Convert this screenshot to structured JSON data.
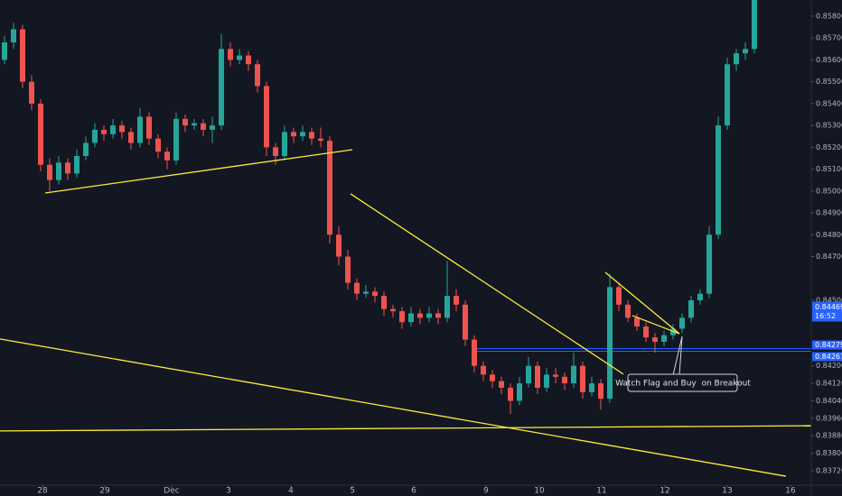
{
  "chart_data": {
    "type": "candlestick",
    "xlim": [
      -0.5,
      89.3
    ],
    "ylim": [
      0.83654,
      0.85874
    ],
    "xticks": [
      {
        "value": 4.2,
        "label": "28"
      },
      {
        "value": 11.1,
        "label": "29"
      },
      {
        "value": 18.5,
        "label": "Dec"
      },
      {
        "value": 24.8,
        "label": "3"
      },
      {
        "value": 31.7,
        "label": "4"
      },
      {
        "value": 38.5,
        "label": "5"
      },
      {
        "value": 45.3,
        "label": "6"
      },
      {
        "value": 53.3,
        "label": "9"
      },
      {
        "value": 59.2,
        "label": "10"
      },
      {
        "value": 66.1,
        "label": "11"
      },
      {
        "value": 73.1,
        "label": "12"
      },
      {
        "value": 80,
        "label": "13"
      },
      {
        "value": 87,
        "label": "16"
      }
    ],
    "yticks": [
      {
        "value": 0.858,
        "label": "0.85800"
      },
      {
        "value": 0.857,
        "label": "0.85700"
      },
      {
        "value": 0.856,
        "label": "0.85600"
      },
      {
        "value": 0.855,
        "label": "0.85500"
      },
      {
        "value": 0.854,
        "label": "0.85400"
      },
      {
        "value": 0.853,
        "label": "0.85300"
      },
      {
        "value": 0.852,
        "label": "0.85200"
      },
      {
        "value": 0.851,
        "label": "0.85100"
      },
      {
        "value": 0.85,
        "label": "0.85000"
      },
      {
        "value": 0.849,
        "label": "0.84900"
      },
      {
        "value": 0.848,
        "label": "0.84800"
      },
      {
        "value": 0.847,
        "label": "0.84700"
      },
      {
        "value": 0.845,
        "label": "0.84500"
      },
      {
        "value": 0.842,
        "label": "0.84200"
      },
      {
        "value": 0.8412,
        "label": "0.84120"
      },
      {
        "value": 0.8404,
        "label": "0.84040"
      },
      {
        "value": 0.8396,
        "label": "0.83960"
      },
      {
        "value": 0.8388,
        "label": "0.83880"
      },
      {
        "value": 0.838,
        "label": "0.83800"
      },
      {
        "value": 0.8372,
        "label": "0.83720"
      }
    ],
    "grid": false,
    "up_color": "#26a69a",
    "down_color": "#ef5350",
    "ohlc": [
      [
        0.856,
        0.8571,
        0.8558,
        0.8568
      ],
      [
        0.8568,
        0.8577,
        0.8565,
        0.8574
      ],
      [
        0.8574,
        0.8576,
        0.8547,
        0.855
      ],
      [
        0.855,
        0.8553,
        0.8537,
        0.854
      ],
      [
        0.854,
        0.8542,
        0.8509,
        0.8512
      ],
      [
        0.8512,
        0.8515,
        0.85,
        0.8505
      ],
      [
        0.8505,
        0.8516,
        0.8503,
        0.8513
      ],
      [
        0.8513,
        0.8515,
        0.8505,
        0.8508
      ],
      [
        0.8508,
        0.8519,
        0.8506,
        0.8516
      ],
      [
        0.8516,
        0.8525,
        0.8514,
        0.8522
      ],
      [
        0.8522,
        0.8531,
        0.852,
        0.8528
      ],
      [
        0.8528,
        0.853,
        0.8523,
        0.8526
      ],
      [
        0.8526,
        0.8533,
        0.8524,
        0.853
      ],
      [
        0.853,
        0.8532,
        0.8524,
        0.8527
      ],
      [
        0.8527,
        0.8529,
        0.8519,
        0.8522
      ],
      [
        0.8522,
        0.8538,
        0.852,
        0.8534
      ],
      [
        0.8534,
        0.8536,
        0.8521,
        0.8524
      ],
      [
        0.8524,
        0.8526,
        0.8515,
        0.8518
      ],
      [
        0.8518,
        0.852,
        0.851,
        0.8514
      ],
      [
        0.8514,
        0.8536,
        0.8512,
        0.8533
      ],
      [
        0.8533,
        0.8535,
        0.8527,
        0.853
      ],
      [
        0.853,
        0.8533,
        0.8528,
        0.8531
      ],
      [
        0.8531,
        0.8533,
        0.8525,
        0.8528
      ],
      [
        0.8528,
        0.8534,
        0.8522,
        0.853
      ],
      [
        0.853,
        0.8572,
        0.8528,
        0.8565
      ],
      [
        0.8565,
        0.8568,
        0.8557,
        0.856
      ],
      [
        0.856,
        0.8565,
        0.8558,
        0.8562
      ],
      [
        0.8562,
        0.8564,
        0.8555,
        0.8558
      ],
      [
        0.8558,
        0.856,
        0.8545,
        0.8548
      ],
      [
        0.8548,
        0.855,
        0.8516,
        0.852
      ],
      [
        0.852,
        0.8522,
        0.8512,
        0.8516
      ],
      [
        0.8516,
        0.853,
        0.8514,
        0.8527
      ],
      [
        0.8527,
        0.8529,
        0.8522,
        0.8525
      ],
      [
        0.8525,
        0.853,
        0.8523,
        0.8527
      ],
      [
        0.8527,
        0.8529,
        0.8521,
        0.8524
      ],
      [
        0.8524,
        0.8529,
        0.852,
        0.8523
      ],
      [
        0.8523,
        0.8525,
        0.8476,
        0.848
      ],
      [
        0.848,
        0.8484,
        0.8466,
        0.847
      ],
      [
        0.847,
        0.8473,
        0.8455,
        0.8458
      ],
      [
        0.8458,
        0.846,
        0.845,
        0.8453
      ],
      [
        0.8453,
        0.8457,
        0.8451,
        0.8454
      ],
      [
        0.8454,
        0.8456,
        0.8449,
        0.8452
      ],
      [
        0.8452,
        0.8454,
        0.8443,
        0.8446
      ],
      [
        0.8446,
        0.8448,
        0.8442,
        0.8445
      ],
      [
        0.8445,
        0.8447,
        0.8437,
        0.844
      ],
      [
        0.844,
        0.8447,
        0.8438,
        0.8444
      ],
      [
        0.8444,
        0.8446,
        0.8439,
        0.8442
      ],
      [
        0.8442,
        0.8447,
        0.844,
        0.8444
      ],
      [
        0.8444,
        0.8446,
        0.8439,
        0.8442
      ],
      [
        0.8442,
        0.8468,
        0.844,
        0.8452
      ],
      [
        0.8452,
        0.8455,
        0.8445,
        0.8448
      ],
      [
        0.8448,
        0.845,
        0.8429,
        0.8432
      ],
      [
        0.8432,
        0.8434,
        0.8417,
        0.842
      ],
      [
        0.842,
        0.8422,
        0.8413,
        0.8416
      ],
      [
        0.8416,
        0.8418,
        0.841,
        0.8413
      ],
      [
        0.8413,
        0.8415,
        0.8407,
        0.841
      ],
      [
        0.841,
        0.8412,
        0.8398,
        0.8404
      ],
      [
        0.8404,
        0.8415,
        0.8402,
        0.8412
      ],
      [
        0.8412,
        0.8424,
        0.841,
        0.842
      ],
      [
        0.842,
        0.8422,
        0.8407,
        0.841
      ],
      [
        0.841,
        0.8419,
        0.8408,
        0.8416
      ],
      [
        0.8416,
        0.8419,
        0.8412,
        0.8415
      ],
      [
        0.8415,
        0.8417,
        0.8409,
        0.8412
      ],
      [
        0.8412,
        0.8426,
        0.841,
        0.842
      ],
      [
        0.842,
        0.8422,
        0.8405,
        0.8408
      ],
      [
        0.8408,
        0.8415,
        0.8406,
        0.8412
      ],
      [
        0.8412,
        0.8414,
        0.84,
        0.8405
      ],
      [
        0.8405,
        0.8462,
        0.8403,
        0.8456
      ],
      [
        0.8456,
        0.8458,
        0.8445,
        0.8448
      ],
      [
        0.8448,
        0.845,
        0.844,
        0.8442
      ],
      [
        0.8442,
        0.8444,
        0.8436,
        0.8438
      ],
      [
        0.8438,
        0.844,
        0.8431,
        0.8433
      ],
      [
        0.8433,
        0.8435,
        0.8426,
        0.8431
      ],
      [
        0.8431,
        0.8436,
        0.8429,
        0.8434
      ],
      [
        0.8434,
        0.8439,
        0.8432,
        0.8437
      ],
      [
        0.8437,
        0.8444,
        0.8435,
        0.8442
      ],
      [
        0.8442,
        0.8452,
        0.844,
        0.845
      ],
      [
        0.845,
        0.8455,
        0.8448,
        0.8453
      ],
      [
        0.8453,
        0.8484,
        0.8451,
        0.848
      ],
      [
        0.848,
        0.8534,
        0.8478,
        0.853
      ],
      [
        0.853,
        0.8561,
        0.8528,
        0.8558
      ],
      [
        0.8558,
        0.8565,
        0.8555,
        0.8563
      ],
      [
        0.8563,
        0.8568,
        0.856,
        0.8565
      ],
      [
        0.8565,
        0.8595,
        0.8563,
        0.859
      ]
    ],
    "trendlines": [
      {
        "from": [
          4.5,
          0.84991
        ],
        "to": [
          38.5,
          0.85189
        ],
        "color": "#ffeb3b"
      },
      {
        "from": [
          38.3,
          0.84987
        ],
        "to": [
          68.5,
          0.84162
        ],
        "color": "#ffeb3b"
      },
      {
        "from": [
          -0.5,
          0.84323
        ],
        "to": [
          86.5,
          0.83695
        ],
        "color": "#ffeb3b"
      },
      {
        "from": [
          -0.5,
          0.83902
        ],
        "to": [
          89.3,
          0.83926
        ],
        "color": "#ffeb3b"
      },
      {
        "from": [
          66.5,
          0.84628
        ],
        "to": [
          74.7,
          0.84347
        ],
        "color": "#ffeb3b"
      },
      {
        "from": [
          69.5,
          0.8443
        ],
        "to": [
          74.7,
          0.84347
        ],
        "color": "#ffeb3b"
      }
    ],
    "price_lines": [
      {
        "value": 0.84279,
        "label": "0.84279"
      },
      {
        "value": 0.84267,
        "label": "0.84267"
      }
    ],
    "price_line_color": "#2962ff",
    "last_price": {
      "value": 0.84469,
      "label": "0.84469"
    },
    "countdown": "16:52",
    "annotation": "Watch Flag and Buy  on Breakout"
  }
}
